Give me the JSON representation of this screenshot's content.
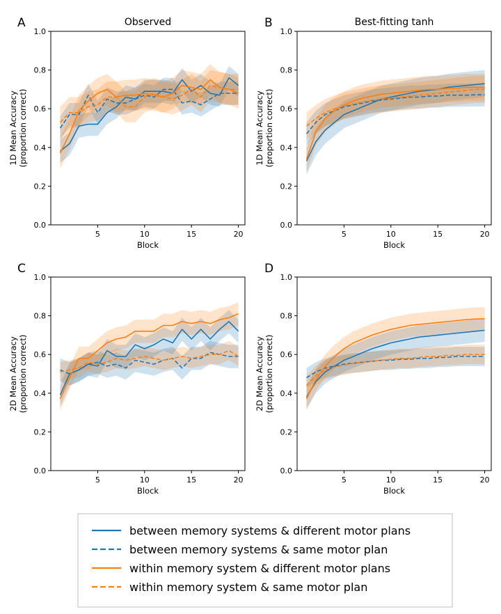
{
  "legend": {
    "items": [
      {
        "label": "between memory systems & different motor plans",
        "color": "#1f77b4",
        "dash": "solid"
      },
      {
        "label": "between memory systems & same motor plan",
        "color": "#1f77b4",
        "dash": "dashed"
      },
      {
        "label": "within memory system & different motor plans",
        "color": "#ff7f0e",
        "dash": "solid"
      },
      {
        "label": "within memory system & same motor plan",
        "color": "#ff7f0e",
        "dash": "dashed"
      }
    ]
  },
  "chart_data": [
    {
      "panel": "A",
      "title": "Observed",
      "type": "line",
      "xlabel": "Block",
      "ylabel": [
        "1D Mean Accuracy",
        "(proportion correct)"
      ],
      "xlim": [
        0,
        20.7
      ],
      "ylim": [
        0,
        1.0
      ],
      "xticks": [
        5,
        10,
        15,
        20
      ],
      "yticks": [
        "0.0",
        "0.2",
        "0.4",
        "0.6",
        "0.8",
        "1.0"
      ],
      "x": [
        1,
        2,
        3,
        4,
        5,
        6,
        7,
        8,
        9,
        10,
        11,
        12,
        13,
        14,
        15,
        16,
        17,
        18,
        19,
        20
      ],
      "series": [
        {
          "color": "#1f77b4",
          "dash": "solid",
          "values": [
            0.38,
            0.42,
            0.51,
            0.52,
            0.52,
            0.58,
            0.61,
            0.66,
            0.65,
            0.69,
            0.69,
            0.69,
            0.68,
            0.75,
            0.69,
            0.72,
            0.68,
            0.67,
            0.76,
            0.72
          ],
          "band": 0.06
        },
        {
          "color": "#1f77b4",
          "dash": "dashed",
          "values": [
            0.5,
            0.57,
            0.57,
            0.67,
            0.58,
            0.65,
            0.63,
            0.63,
            0.65,
            0.67,
            0.66,
            0.7,
            0.7,
            0.63,
            0.64,
            0.62,
            0.65,
            0.68,
            0.68,
            0.68
          ],
          "band": 0.06
        },
        {
          "color": "#ff7f0e",
          "dash": "solid",
          "values": [
            0.37,
            0.47,
            0.59,
            0.64,
            0.68,
            0.7,
            0.66,
            0.67,
            0.67,
            0.68,
            0.67,
            0.66,
            0.68,
            0.72,
            0.71,
            0.7,
            0.75,
            0.71,
            0.7,
            0.68
          ],
          "band": 0.08
        },
        {
          "color": "#ff7f0e",
          "dash": "dashed",
          "values": [
            0.53,
            0.58,
            0.58,
            0.61,
            0.62,
            0.66,
            0.66,
            0.61,
            0.61,
            0.66,
            0.68,
            0.66,
            0.65,
            0.67,
            0.7,
            0.66,
            0.72,
            0.71,
            0.7,
            0.7
          ],
          "band": 0.08
        }
      ]
    },
    {
      "panel": "B",
      "title": "Best-fitting tanh",
      "type": "line",
      "xlabel": "Block",
      "ylabel": [
        "1D Mean Accuracy",
        "(proportion correct)"
      ],
      "xlim": [
        0,
        20.7
      ],
      "ylim": [
        0,
        1.0
      ],
      "xticks": [
        5,
        10,
        15,
        20
      ],
      "yticks": [
        "0.0",
        "0.2",
        "0.4",
        "0.6",
        "0.8",
        "1.0"
      ],
      "x": [
        1,
        2,
        3,
        4,
        5,
        6,
        7,
        8,
        9,
        10,
        11,
        12,
        13,
        14,
        15,
        16,
        17,
        18,
        19,
        20
      ],
      "series": [
        {
          "color": "#1f77b4",
          "dash": "solid",
          "values": [
            0.33,
            0.43,
            0.49,
            0.53,
            0.57,
            0.59,
            0.61,
            0.63,
            0.65,
            0.66,
            0.67,
            0.68,
            0.69,
            0.695,
            0.7,
            0.71,
            0.715,
            0.72,
            0.725,
            0.73
          ],
          "band": 0.07
        },
        {
          "color": "#1f77b4",
          "dash": "dashed",
          "values": [
            0.47,
            0.53,
            0.57,
            0.59,
            0.61,
            0.62,
            0.63,
            0.64,
            0.645,
            0.65,
            0.655,
            0.66,
            0.66,
            0.665,
            0.665,
            0.67,
            0.67,
            0.67,
            0.672,
            0.672
          ],
          "band": 0.06
        },
        {
          "color": "#ff7f0e",
          "dash": "solid",
          "values": [
            0.34,
            0.48,
            0.55,
            0.59,
            0.62,
            0.64,
            0.655,
            0.665,
            0.675,
            0.68,
            0.685,
            0.69,
            0.695,
            0.7,
            0.7,
            0.705,
            0.705,
            0.71,
            0.71,
            0.71
          ],
          "band": 0.07
        },
        {
          "color": "#ff7f0e",
          "dash": "dashed",
          "values": [
            0.51,
            0.55,
            0.58,
            0.6,
            0.615,
            0.625,
            0.635,
            0.645,
            0.65,
            0.655,
            0.66,
            0.665,
            0.67,
            0.675,
            0.68,
            0.685,
            0.69,
            0.695,
            0.7,
            0.7
          ],
          "band": 0.07
        }
      ]
    },
    {
      "panel": "C",
      "title": "",
      "type": "line",
      "xlabel": "Block",
      "ylabel": [
        "2D Mean Accuracy",
        "(proportion correct)"
      ],
      "xlim": [
        0,
        20.7
      ],
      "ylim": [
        0,
        1.0
      ],
      "xticks": [
        5,
        10,
        15,
        20
      ],
      "yticks": [
        "0.0",
        "0.2",
        "0.4",
        "0.6",
        "0.8",
        "1.0"
      ],
      "x": [
        1,
        2,
        3,
        4,
        5,
        6,
        7,
        8,
        9,
        10,
        11,
        12,
        13,
        14,
        15,
        16,
        17,
        18,
        19,
        20
      ],
      "series": [
        {
          "color": "#1f77b4",
          "dash": "solid",
          "values": [
            0.39,
            0.5,
            0.52,
            0.55,
            0.54,
            0.62,
            0.59,
            0.59,
            0.65,
            0.63,
            0.65,
            0.68,
            0.66,
            0.73,
            0.68,
            0.73,
            0.68,
            0.73,
            0.77,
            0.72
          ],
          "band": 0.06
        },
        {
          "color": "#1f77b4",
          "dash": "dashed",
          "values": [
            0.52,
            0.5,
            0.52,
            0.55,
            0.56,
            0.54,
            0.55,
            0.53,
            0.57,
            0.56,
            0.55,
            0.57,
            0.58,
            0.53,
            0.58,
            0.58,
            0.61,
            0.6,
            0.59,
            0.59
          ],
          "band": 0.06
        },
        {
          "color": "#ff7f0e",
          "dash": "solid",
          "values": [
            0.37,
            0.48,
            0.58,
            0.58,
            0.62,
            0.66,
            0.68,
            0.69,
            0.72,
            0.72,
            0.72,
            0.75,
            0.75,
            0.77,
            0.76,
            0.77,
            0.76,
            0.78,
            0.79,
            0.81
          ],
          "band": 0.06
        },
        {
          "color": "#ff7f0e",
          "dash": "dashed",
          "values": [
            0.51,
            0.52,
            0.53,
            0.56,
            0.55,
            0.56,
            0.58,
            0.57,
            0.58,
            0.59,
            0.58,
            0.57,
            0.58,
            0.59,
            0.58,
            0.59,
            0.6,
            0.6,
            0.62,
            0.59
          ],
          "band": 0.05
        }
      ]
    },
    {
      "panel": "D",
      "title": "",
      "type": "line",
      "xlabel": "Block",
      "ylabel": [
        "2D Mean Accuracy",
        "(proportion correct)"
      ],
      "xlim": [
        0,
        20.7
      ],
      "ylim": [
        0,
        1.0
      ],
      "xticks": [
        5,
        10,
        15,
        20
      ],
      "yticks": [
        "0.0",
        "0.2",
        "0.4",
        "0.6",
        "0.8",
        "1.0"
      ],
      "x": [
        1,
        2,
        3,
        4,
        5,
        6,
        7,
        8,
        9,
        10,
        11,
        12,
        13,
        14,
        15,
        16,
        17,
        18,
        19,
        20
      ],
      "series": [
        {
          "color": "#1f77b4",
          "dash": "solid",
          "values": [
            0.38,
            0.46,
            0.51,
            0.54,
            0.57,
            0.59,
            0.61,
            0.63,
            0.645,
            0.66,
            0.67,
            0.68,
            0.69,
            0.695,
            0.7,
            0.705,
            0.71,
            0.715,
            0.72,
            0.725
          ],
          "band": 0.06
        },
        {
          "color": "#1f77b4",
          "dash": "dashed",
          "values": [
            0.48,
            0.51,
            0.53,
            0.54,
            0.55,
            0.555,
            0.56,
            0.565,
            0.57,
            0.57,
            0.575,
            0.575,
            0.58,
            0.58,
            0.585,
            0.585,
            0.59,
            0.59,
            0.59,
            0.59
          ],
          "band": 0.05
        },
        {
          "color": "#ff7f0e",
          "dash": "solid",
          "values": [
            0.37,
            0.47,
            0.54,
            0.59,
            0.63,
            0.66,
            0.68,
            0.7,
            0.715,
            0.73,
            0.74,
            0.75,
            0.755,
            0.76,
            0.765,
            0.77,
            0.775,
            0.78,
            0.783,
            0.785
          ],
          "band": 0.06
        },
        {
          "color": "#ff7f0e",
          "dash": "dashed",
          "values": [
            0.44,
            0.49,
            0.52,
            0.535,
            0.545,
            0.555,
            0.56,
            0.565,
            0.57,
            0.575,
            0.58,
            0.58,
            0.585,
            0.59,
            0.59,
            0.595,
            0.595,
            0.6,
            0.6,
            0.6
          ],
          "band": 0.05
        }
      ]
    }
  ]
}
